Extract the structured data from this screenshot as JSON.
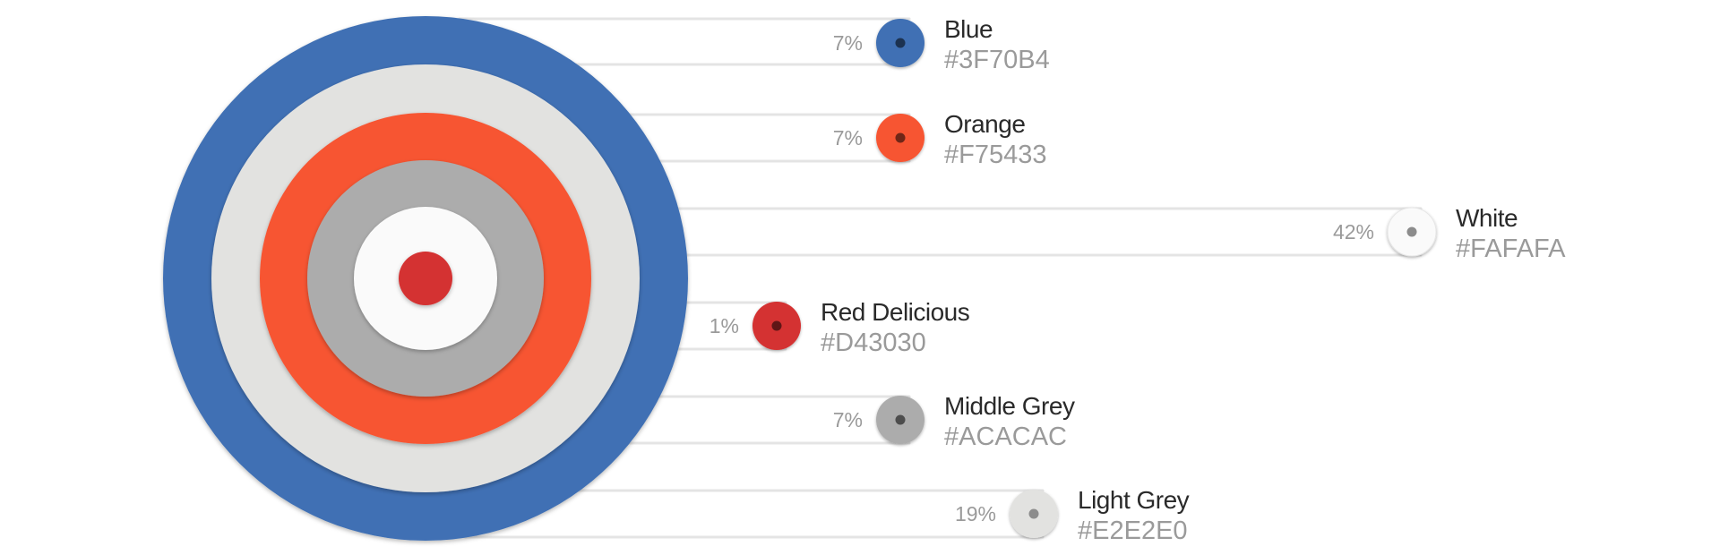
{
  "chart_data": {
    "type": "pie",
    "style": "concentric-rings",
    "ring_order_outer_to_inner": [
      "Blue",
      "Light Grey",
      "Orange",
      "Middle Grey",
      "White",
      "Red Delicious"
    ],
    "legend_order": [
      "Blue",
      "Orange",
      "White",
      "Red Delicious",
      "Middle Grey",
      "Light Grey"
    ],
    "slices": [
      {
        "name": "Blue",
        "value": 7,
        "label": "7%",
        "hex_label": "#3F70B4",
        "color": "#3f70b4"
      },
      {
        "name": "Orange",
        "value": 7,
        "label": "7%",
        "hex_label": "#F75433",
        "color": "#f75433"
      },
      {
        "name": "White",
        "value": 42,
        "label": "42%",
        "hex_label": "#FAFAFA",
        "color": "#fafafa"
      },
      {
        "name": "Red Delicious",
        "value": 1,
        "label": "1%",
        "hex_label": "#D43030",
        "color": "#d43030"
      },
      {
        "name": "Middle Grey",
        "value": 7,
        "label": "7%",
        "hex_label": "#ACACAC",
        "color": "#acacac"
      },
      {
        "name": "Light Grey",
        "value": 19,
        "label": "19%",
        "hex_label": "#E2E2E0",
        "color": "#e2e2e0"
      }
    ]
  }
}
